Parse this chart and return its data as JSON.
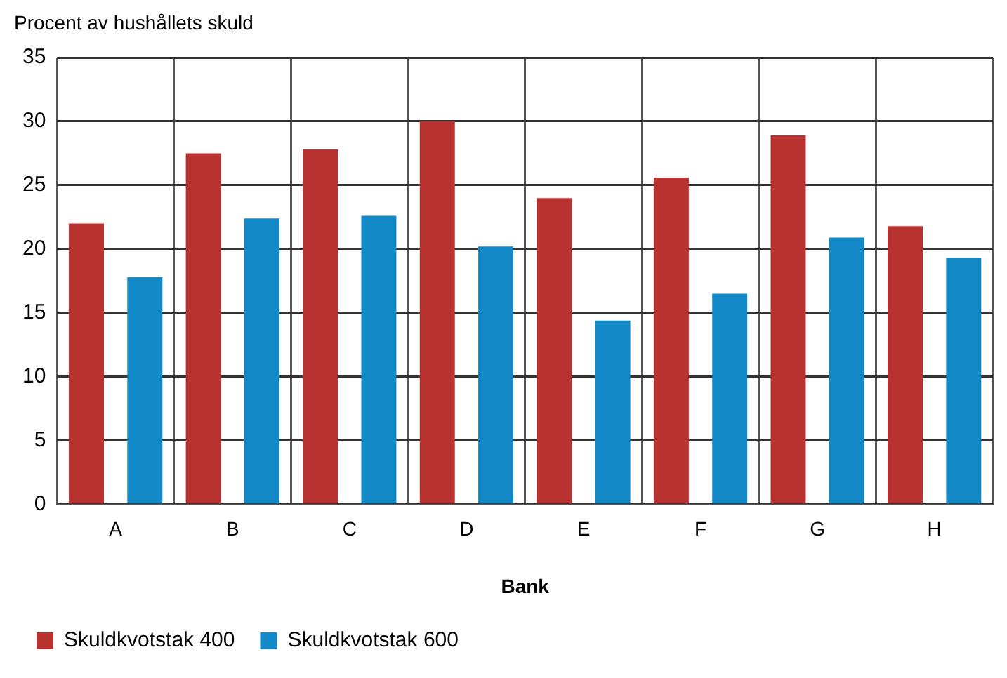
{
  "chart_data": {
    "type": "bar",
    "ylabel": "Procent av hushållets skuld",
    "xlabel": "Bank",
    "categories": [
      "A",
      "B",
      "C",
      "D",
      "E",
      "F",
      "G",
      "H"
    ],
    "series": [
      {
        "name": "Skuldkvotstak 400",
        "color": "#b83230",
        "values": [
          22,
          27.5,
          27.8,
          30,
          24,
          25.6,
          28.9,
          21.8
        ]
      },
      {
        "name": "Skuldkvotstak 600",
        "color": "#1288c6",
        "values": [
          17.8,
          22.4,
          22.6,
          20.2,
          14.4,
          16.5,
          20.9,
          19.3
        ]
      }
    ],
    "ylim": [
      0,
      35
    ],
    "yticks": [
      0,
      5,
      10,
      15,
      20,
      25,
      30,
      35
    ],
    "grid": true,
    "legend": "bottom left"
  }
}
